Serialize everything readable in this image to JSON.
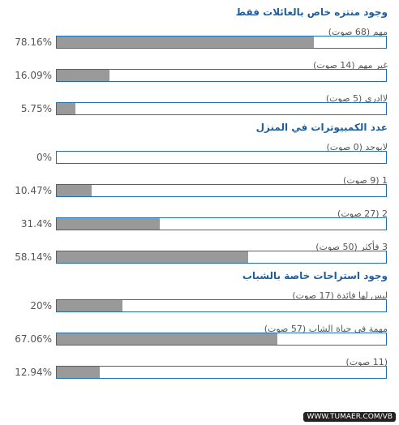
{
  "polls": [
    {
      "title": "وجود منتزه خاص بالعائلات فقط",
      "options": [
        {
          "label": "مهم",
          "votes": "(68 صوت)",
          "percent": {
            "value": 78.16,
            "label": "78.16%"
          }
        },
        {
          "label": "غير مهم",
          "votes": "(14 صوت)",
          "percent": {
            "value": 16.09,
            "label": "16.09%"
          }
        },
        {
          "label": "لاادري",
          "votes": "(5 صوت)",
          "percent": {
            "value": 5.75,
            "label": "5.75%"
          }
        }
      ]
    },
    {
      "title": "عدد الكمبيوترات في المنزل",
      "options": [
        {
          "label": "لايوجد",
          "votes": "(0 صوت)",
          "percent": {
            "value": 0,
            "label": "0%"
          }
        },
        {
          "label": "1",
          "votes": "(9 صوت)",
          "percent": {
            "value": 10.47,
            "label": "10.47%"
          }
        },
        {
          "label": "2",
          "votes": "(27 صوت)",
          "percent": {
            "value": 31.4,
            "label": "31.4%"
          }
        },
        {
          "label": "3 فأكثر",
          "votes": "(50 صوت)",
          "percent": {
            "value": 58.14,
            "label": "58.14%"
          }
        }
      ]
    },
    {
      "title": "وجود استراحات خاصة بالشباب",
      "options": [
        {
          "label": "ليس لها فائدة",
          "votes": "(17 صوت)",
          "percent": {
            "value": 20,
            "label": "20%"
          }
        },
        {
          "label": "مهمة في حياة الشاب",
          "votes": "(57 صوت)",
          "percent": {
            "value": 67.06,
            "label": "67.06%"
          }
        },
        {
          "label": "",
          "votes": "(11 صوت)",
          "percent": {
            "value": 12.94,
            "label": "12.94%"
          }
        }
      ]
    }
  ],
  "watermark": "WWW.TUMAER.COM/VB"
}
